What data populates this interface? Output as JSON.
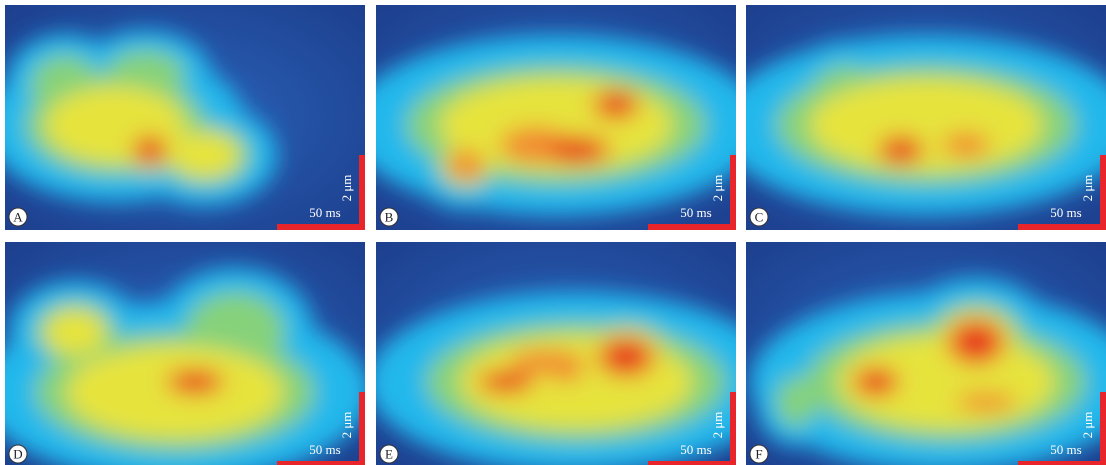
{
  "panels": [
    {
      "label": "A",
      "time_scale": "50 ms",
      "space_scale": "2 μm"
    },
    {
      "label": "B",
      "time_scale": "50 ms",
      "space_scale": "2 μm"
    },
    {
      "label": "C",
      "time_scale": "50 ms",
      "space_scale": "2 μm"
    },
    {
      "label": "D",
      "time_scale": "50 ms",
      "space_scale": "2 μm"
    },
    {
      "label": "E",
      "time_scale": "50 ms",
      "space_scale": "2 μm"
    },
    {
      "label": "F",
      "time_scale": "50 ms",
      "space_scale": "2 μm"
    }
  ]
}
